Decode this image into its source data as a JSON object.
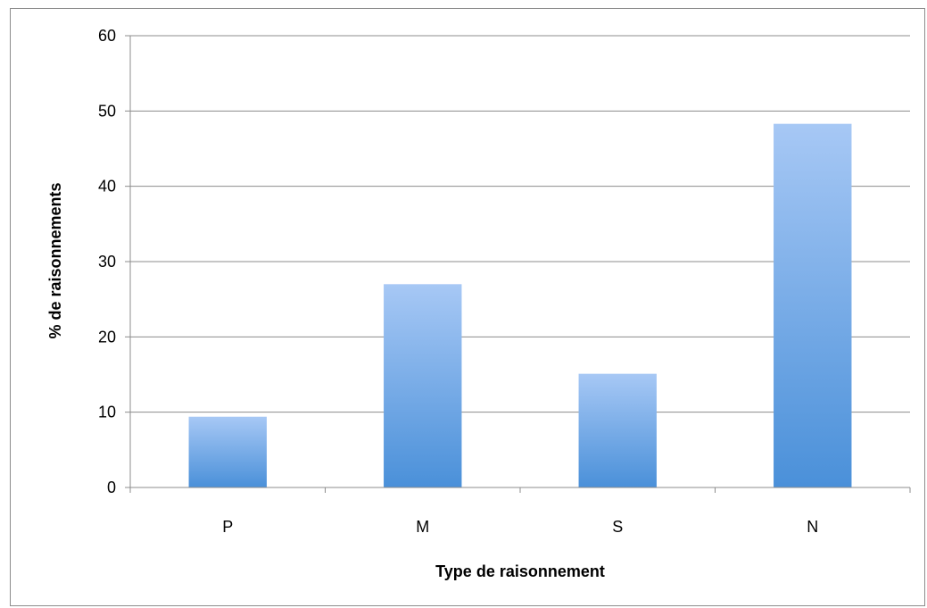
{
  "chart_data": {
    "type": "bar",
    "title": "",
    "xlabel": "Type de raisonnement",
    "ylabel": "% de raisonnements",
    "categories": [
      "P",
      "M",
      "S",
      "N"
    ],
    "values": [
      9.4,
      27.0,
      15.1,
      48.3
    ],
    "ylim": [
      0,
      60
    ],
    "yticks": [
      0,
      10,
      20,
      30,
      40,
      50,
      60
    ],
    "grid": true,
    "legend": "none",
    "bar_color_top": "#a7c8f5",
    "bar_color_bottom": "#4a90d9",
    "gridline_color": "#8c8c8c"
  }
}
